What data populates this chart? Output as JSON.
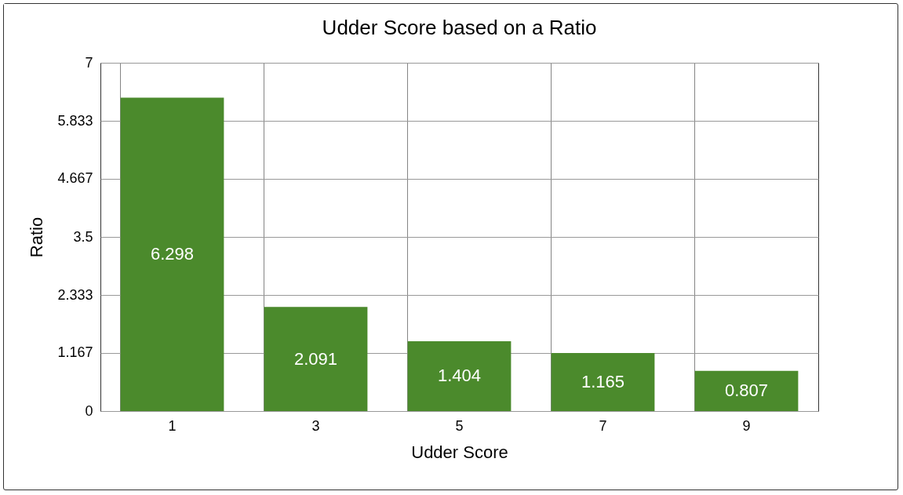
{
  "chart_data": {
    "type": "bar",
    "title": "Udder Score based on a Ratio",
    "xlabel": "Udder Score",
    "ylabel": "Ratio",
    "categories": [
      "1",
      "3",
      "5",
      "7",
      "9"
    ],
    "values": [
      6.298,
      2.091,
      1.404,
      1.165,
      0.807
    ],
    "color": "#4b8a2c",
    "ylim": [
      0,
      7
    ],
    "yticks": [
      0,
      1.167,
      2.333,
      3.5,
      4.667,
      5.833,
      7
    ],
    "grid": true,
    "data_labels": true
  }
}
